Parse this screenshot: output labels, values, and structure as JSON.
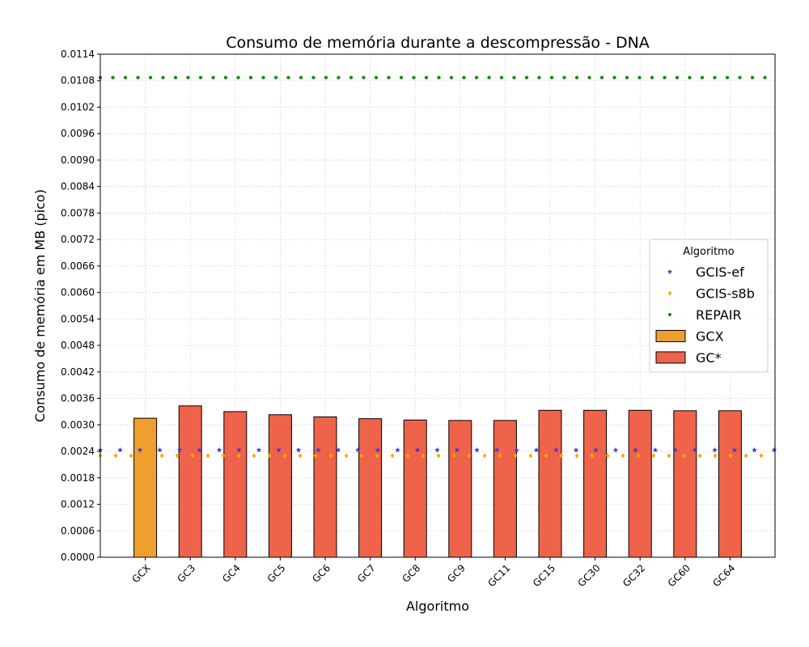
{
  "chart_data": {
    "type": "bar",
    "title": "Consumo de memória durante a descompressão -  DNA",
    "xlabel": "Algoritmo",
    "ylabel": "Consumo de memória em MB (pico)",
    "ylim": [
      0,
      0.0114
    ],
    "yticks": [
      "0.0000",
      "0.0006",
      "0.0012",
      "0.0018",
      "0.0024",
      "0.0030",
      "0.0036",
      "0.0042",
      "0.0048",
      "0.0054",
      "0.0060",
      "0.0066",
      "0.0072",
      "0.0078",
      "0.0084",
      "0.0090",
      "0.0096",
      "0.0102",
      "0.0108",
      "0.0114"
    ],
    "grid": true,
    "legend_title": "Algoritmo",
    "legend_position": "center-right",
    "categories": [
      "GCX",
      "GC3",
      "GC4",
      "GC5",
      "GC6",
      "GC7",
      "GC8",
      "GC9",
      "GC11",
      "GC15",
      "GC30",
      "GC32",
      "GC60",
      "GC64"
    ],
    "bars": [
      {
        "name": "GCX",
        "color": "#ee9f2f",
        "values": {
          "GCX": 0.00315
        }
      },
      {
        "name": "GC*",
        "color": "#ee6349",
        "values": {
          "GC3": 0.00343,
          "GC4": 0.0033,
          "GC5": 0.00323,
          "GC6": 0.00318,
          "GC7": 0.00314,
          "GC8": 0.00311,
          "GC9": 0.0031,
          "GC11": 0.0031,
          "GC15": 0.00333,
          "GC30": 0.00333,
          "GC32": 0.00333,
          "GC60": 0.00332,
          "GC64": 0.00332
        }
      }
    ],
    "lines": [
      {
        "name": "GCIS-ef",
        "value": 0.00243,
        "color": "#3b3bdb",
        "marker": "star"
      },
      {
        "name": "GCIS-s8b",
        "value": 0.0023,
        "color": "#ffa500",
        "marker": "diamond"
      },
      {
        "name": "REPAIR",
        "value": 0.01087,
        "color": "#1f8a1f",
        "marker": "circle"
      }
    ]
  }
}
